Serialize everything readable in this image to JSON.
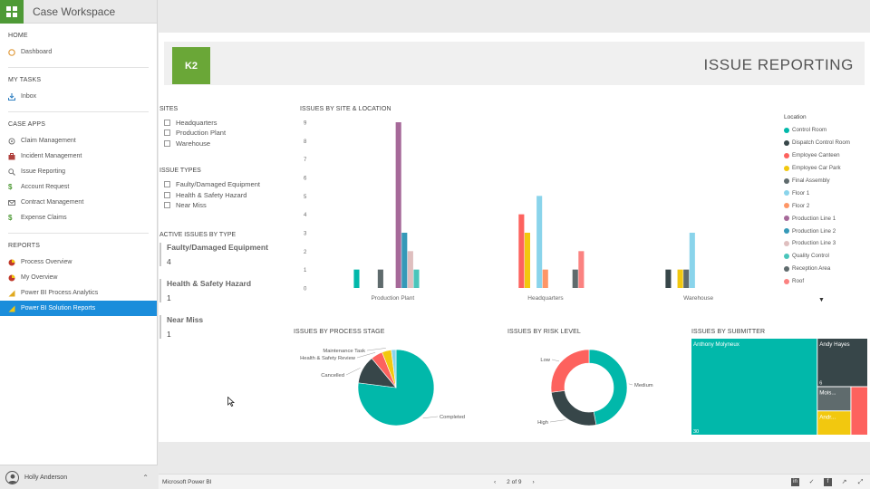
{
  "app": {
    "title": "Case Workspace"
  },
  "nav": {
    "home": {
      "head": "HOME",
      "items": [
        "Dashboard"
      ]
    },
    "tasks": {
      "head": "MY TASKS",
      "items": [
        "Inbox"
      ]
    },
    "case_apps": {
      "head": "CASE APPS",
      "items": [
        "Claim Management",
        "Incident Management",
        "Issue Reporting",
        "Account Request",
        "Contract Management",
        "Expense Claims"
      ]
    },
    "reports": {
      "head": "REPORTS",
      "items": [
        "Process Overview",
        "My Overview",
        "Power BI Process Analytics",
        "Power BI Solution Reports"
      ]
    }
  },
  "user": {
    "name": "Holly Anderson"
  },
  "report": {
    "logo_text": "K2",
    "title": "ISSUE REPORTING",
    "sites": {
      "head": "SITES",
      "items": [
        "Headquarters",
        "Production Plant",
        "Warehouse"
      ]
    },
    "issue_types": {
      "head": "ISSUE TYPES",
      "items": [
        "Faulty/Damaged Equipment",
        "Health & Safety Hazard",
        "Near Miss"
      ]
    },
    "active": {
      "head": "ACTIVE ISSUES BY TYPE",
      "cards": [
        {
          "label": "Faulty/Damaged Equipment",
          "value": "4"
        },
        {
          "label": "Health & Safety Hazard",
          "value": "1"
        },
        {
          "label": "Near Miss",
          "value": "1"
        }
      ]
    },
    "viz_titles": {
      "bar": "ISSUES BY SITE & LOCATION",
      "process": "ISSUES BY PROCESS STAGE",
      "risk": "ISSUES BY RISK LEVEL",
      "submitter": "ISSUES BY SUBMITTER"
    },
    "legend_title": "Location"
  },
  "colors": {
    "brand_green": "#6aa737",
    "accent_blue": "#1b8ddb",
    "teal": "#01b8aa"
  },
  "chart_data": [
    {
      "type": "bar",
      "title": "ISSUES BY SITE & LOCATION",
      "categories": [
        "Production Plant",
        "Headquarters",
        "Warehouse"
      ],
      "ylim": [
        0,
        9
      ],
      "yticks": [
        0,
        1,
        2,
        3,
        4,
        5,
        6,
        7,
        8,
        9
      ],
      "legend_title": "Location",
      "legend_placement": "right",
      "series": [
        {
          "name": "Control Room",
          "color": "#01b8aa",
          "values": [
            1,
            0,
            0
          ]
        },
        {
          "name": "Dispatch Control Room",
          "color": "#374649",
          "values": [
            0,
            0,
            1
          ]
        },
        {
          "name": "Employee Canteen",
          "color": "#fd625e",
          "values": [
            0,
            4,
            0
          ]
        },
        {
          "name": "Employee Car Park",
          "color": "#f2c80f",
          "values": [
            0,
            3,
            1
          ]
        },
        {
          "name": "Final Assembly",
          "color": "#5f6b6d",
          "values": [
            1,
            0,
            1
          ]
        },
        {
          "name": "Floor 1",
          "color": "#8ad4eb",
          "values": [
            0,
            5,
            3
          ]
        },
        {
          "name": "Floor 2",
          "color": "#fe9666",
          "values": [
            0,
            1,
            0
          ]
        },
        {
          "name": "Production Line 1",
          "color": "#a66999",
          "values": [
            9,
            0,
            0
          ]
        },
        {
          "name": "Production Line 2",
          "color": "#3599b8",
          "values": [
            3,
            0,
            0
          ]
        },
        {
          "name": "Production Line 3",
          "color": "#dfbfbf",
          "values": [
            2,
            0,
            0
          ]
        },
        {
          "name": "Quality Control",
          "color": "#4ac5bb",
          "values": [
            1,
            0,
            0
          ]
        },
        {
          "name": "Reception Area",
          "color": "#5f6b6d",
          "values": [
            0,
            1,
            0
          ]
        },
        {
          "name": "Roof",
          "color": "#fb8281",
          "values": [
            0,
            2,
            0
          ]
        }
      ]
    },
    {
      "type": "pie",
      "title": "ISSUES BY PROCESS STAGE",
      "slices": [
        {
          "label": "Completed",
          "value": 77,
          "color": "#01b8aa"
        },
        {
          "label": "Cancelled",
          "value": 12,
          "color": "#374649"
        },
        {
          "label": "Health & Safety Review",
          "value": 5,
          "color": "#fd625e"
        },
        {
          "label": "Maintenance Task",
          "value": 4,
          "color": "#f2c80f"
        },
        {
          "label": "",
          "value": 2,
          "color": "#8ad4eb"
        }
      ]
    },
    {
      "type": "pie",
      "title": "ISSUES BY RISK LEVEL",
      "donut": true,
      "slices": [
        {
          "label": "Medium",
          "value": 47,
          "color": "#01b8aa"
        },
        {
          "label": "High",
          "value": 26,
          "color": "#374649"
        },
        {
          "label": "Low",
          "value": 27,
          "color": "#fd625e"
        }
      ]
    },
    {
      "type": "treemap",
      "title": "ISSUES BY SUBMITTER",
      "items": [
        {
          "label": "Anthony Molyneux",
          "value": 30,
          "color": "#01b8aa"
        },
        {
          "label": "Andy Hayes",
          "value": 6,
          "color": "#374649"
        },
        {
          "label": "Mois...",
          "value": 2,
          "color": "#5f6b6d"
        },
        {
          "label": "Andr...",
          "value": 2,
          "color": "#f2c80f"
        },
        {
          "label": "",
          "value": 2,
          "color": "#fd625e"
        }
      ]
    }
  ],
  "footer": {
    "brand": "Microsoft Power BI",
    "page": "2 of 9"
  }
}
